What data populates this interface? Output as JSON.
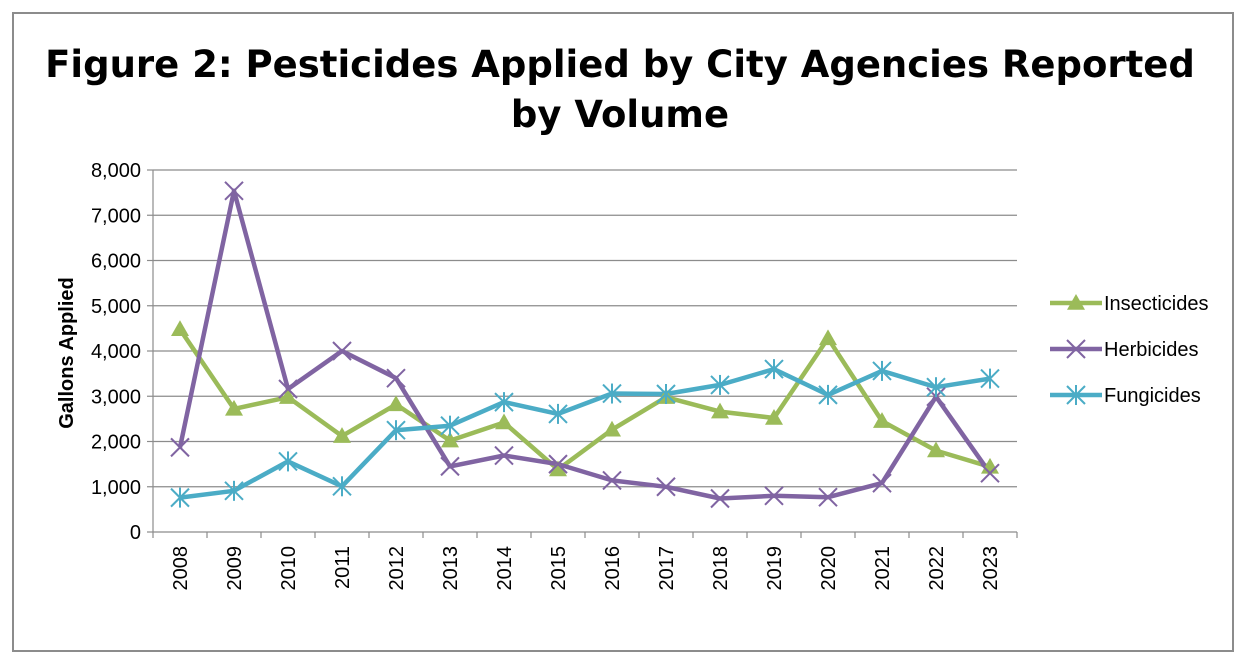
{
  "chart_data": {
    "type": "line",
    "title_line1": "Figure 2: Pesticides Applied by City Agencies Reported",
    "title_line2": "by Volume",
    "ylabel": "Gallons Applied",
    "xlabel": "",
    "categories": [
      "2008",
      "2009",
      "2010",
      "2011",
      "2012",
      "2013",
      "2014",
      "2015",
      "2016",
      "2017",
      "2018",
      "2019",
      "2020",
      "2021",
      "2022",
      "2023"
    ],
    "y_ticks": [
      0,
      1000,
      2000,
      3000,
      4000,
      5000,
      6000,
      7000,
      8000
    ],
    "y_tick_labels": [
      "0",
      "1,000",
      "2,000",
      "3,000",
      "4,000",
      "5,000",
      "6,000",
      "7,000",
      "8,000"
    ],
    "ylim": [
      0,
      8000
    ],
    "grid": true,
    "legend_position": "right",
    "series": [
      {
        "name": "Insecticides",
        "marker": "triangle",
        "color": "#9bbb59",
        "values": [
          4480,
          2720,
          2980,
          2120,
          2820,
          2020,
          2420,
          1380,
          2260,
          2980,
          2660,
          2520,
          4280,
          2450,
          1800,
          1440
        ]
      },
      {
        "name": "Herbicides",
        "marker": "x",
        "color": "#8064a2",
        "values": [
          1870,
          7540,
          3160,
          4000,
          3400,
          1450,
          1690,
          1500,
          1140,
          1000,
          740,
          800,
          770,
          1080,
          2990,
          1300
        ]
      },
      {
        "name": "Fungicides",
        "marker": "star",
        "color": "#4bacc6",
        "values": [
          760,
          910,
          1560,
          1010,
          2250,
          2350,
          2870,
          2610,
          3060,
          3050,
          3250,
          3600,
          3030,
          3560,
          3200,
          3390
        ]
      }
    ]
  }
}
